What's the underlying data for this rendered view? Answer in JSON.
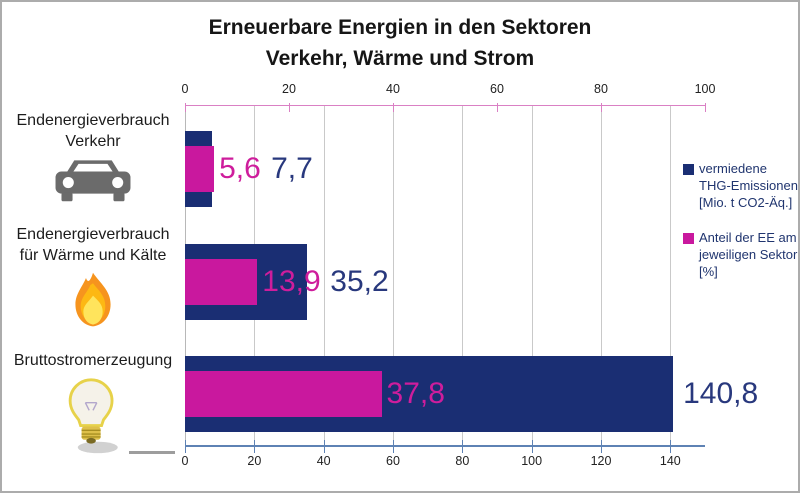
{
  "title": {
    "line1": "Erneuerbare Energien in den Sektoren",
    "line2": "Verkehr, Wärme und Strom"
  },
  "chart_data": {
    "type": "bar",
    "orientation": "horizontal",
    "categories": [
      {
        "label_lines": [
          "Endenergieverbrauch",
          "Verkehr"
        ],
        "icon": "car-icon"
      },
      {
        "label_lines": [
          "Endenergieverbrauch",
          "für Wärme und Kälte"
        ],
        "icon": "flame-icon"
      },
      {
        "label_lines": [
          "Bruttostromerzeugung"
        ],
        "icon": "lightbulb-icon"
      }
    ],
    "series": [
      {
        "name": "vermiedene THG-Emissionen [Mio. t CO2-Äq.]",
        "name_lines": [
          "vermiedene",
          "THG-Emissionen",
          "[Mio. t CO2-Äq.]"
        ],
        "color": "#1a2e73",
        "label_color": "#28387d",
        "axis": "bottom",
        "values": [
          7.7,
          35.2,
          140.8
        ],
        "labels": [
          "7,7",
          "35,2",
          "140,8"
        ]
      },
      {
        "name": "Anteil der EE am jeweiligen Sektor [%]",
        "name_lines": [
          "Anteil der EE am",
          "jeweiligen Sektor",
          "[%]"
        ],
        "color": "#c9189e",
        "label_color": "#ce1d9c",
        "axis": "top",
        "values": [
          5.6,
          13.9,
          37.8
        ],
        "labels": [
          "5,6",
          "13,9",
          "37,8"
        ]
      }
    ],
    "axes": {
      "top": {
        "min": 0,
        "max": 100,
        "tick_interval": 20,
        "tick_labels": [
          "0",
          "20",
          "40",
          "60",
          "80",
          "100"
        ],
        "color": "#da80c4"
      },
      "bottom": {
        "min": 0,
        "max": 150,
        "tick_interval": 20,
        "tick_labels": [
          "0",
          "20",
          "40",
          "60",
          "80",
          "100",
          "120",
          "140"
        ],
        "color": "#5e82b4"
      }
    },
    "gridlines": {
      "axis": "bottom",
      "interval": 20,
      "color": "#c9c9c9"
    },
    "legend_position": "right"
  }
}
